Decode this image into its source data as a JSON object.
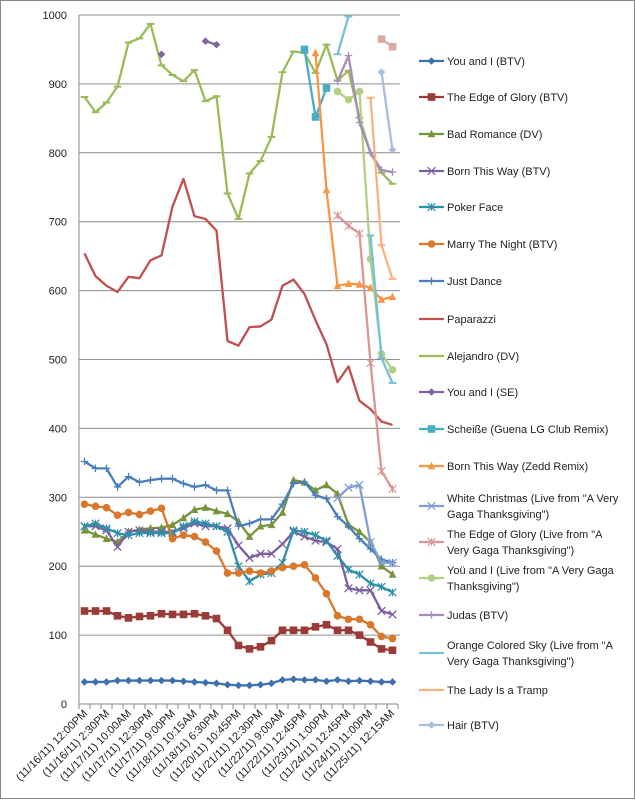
{
  "chart_data": {
    "type": "line",
    "title": "",
    "xlabel": "",
    "ylabel": "",
    "ylim": [
      0,
      1000
    ],
    "yticks": [
      0,
      100,
      200,
      300,
      400,
      500,
      600,
      700,
      800,
      900,
      1000
    ],
    "grid": true,
    "legend_position": "right",
    "category_count": 29,
    "x_tick_labels": [
      "(11/16/11) 12:00PM",
      "(11/16/11) 2:30PM",
      "(11/17/11) 10:00AM",
      "(11/17/11) 12:30PM",
      "(11/17/11) 9:00PM",
      "(11/18/11) 10:15AM",
      "(11/18/11) 6:30PM",
      "(11/20/11) 10:45PM",
      "(11/21/11) 12:30PM",
      "(11/22/11) 9:00AM",
      "(11/22/11) 12:45PM",
      "(11/23/11) 1:00PM",
      "(11/24/11) 12:45PM",
      "(11/24/11) 11:00PM",
      "(11/25/11) 12:15AM"
    ],
    "series": [
      {
        "name": "You and I (BTV)",
        "color": "#3F6FAE",
        "marker": "diamond",
        "values": [
          32,
          32,
          32,
          34,
          34,
          34,
          34,
          34,
          34,
          33,
          32,
          31,
          30,
          28,
          27,
          27,
          28,
          30,
          35,
          36,
          35,
          35,
          33,
          35,
          33,
          34,
          33,
          32,
          32
        ]
      },
      {
        "name": "The Edge of Glory (BTV)",
        "color": "#9A3B38",
        "marker": "square",
        "values": [
          135,
          135,
          135,
          128,
          125,
          127,
          128,
          131,
          130,
          130,
          131,
          128,
          124,
          107,
          85,
          80,
          83,
          92,
          107,
          107,
          107,
          112,
          115,
          107,
          107,
          100,
          90,
          80,
          78
        ]
      },
      {
        "name": "Bad Romance (DV)",
        "color": "#77933C",
        "marker": "triangle",
        "values": [
          252,
          246,
          240,
          235,
          250,
          253,
          255,
          256,
          260,
          270,
          282,
          285,
          280,
          276,
          265,
          243,
          258,
          260,
          278,
          325,
          322,
          310,
          318,
          305,
          260,
          250,
          235,
          200,
          188
        ]
      },
      {
        "name": "Born This Way (BTV)",
        "color": "#7D5FA0",
        "marker": "x",
        "values": [
          258,
          258,
          252,
          228,
          250,
          252,
          250,
          250,
          250,
          255,
          262,
          258,
          258,
          255,
          230,
          212,
          218,
          218,
          232,
          250,
          243,
          237,
          235,
          225,
          168,
          165,
          165,
          135,
          130
        ]
      },
      {
        "name": "Poker Face",
        "color": "#2E8FA8",
        "marker": "star",
        "values": [
          258,
          262,
          255,
          248,
          245,
          248,
          248,
          248,
          248,
          258,
          265,
          262,
          258,
          250,
          200,
          178,
          188,
          190,
          205,
          252,
          250,
          245,
          237,
          215,
          195,
          188,
          175,
          170,
          162
        ]
      },
      {
        "name": "Marry The Night (BTV)",
        "color": "#D9772B",
        "marker": "circle",
        "values": [
          290,
          287,
          285,
          274,
          278,
          275,
          280,
          284,
          240,
          245,
          243,
          235,
          222,
          190,
          190,
          193,
          190,
          193,
          198,
          200,
          202,
          183,
          160,
          128,
          123,
          123,
          115,
          98,
          95
        ]
      },
      {
        "name": "Just Dance",
        "color": "#4A7EBB",
        "marker": "plus",
        "values": [
          352,
          342,
          342,
          315,
          330,
          322,
          325,
          327,
          327,
          320,
          315,
          318,
          310,
          310,
          258,
          262,
          268,
          268,
          290,
          320,
          322,
          303,
          298,
          272,
          258,
          240,
          225,
          210,
          205
        ]
      },
      {
        "name": "Paparazzi",
        "color": "#C0504D",
        "marker": "none",
        "values": [
          654,
          621,
          607,
          598,
          620,
          618,
          644,
          651,
          722,
          762,
          708,
          704,
          687,
          527,
          520,
          547,
          548,
          558,
          607,
          616,
          595,
          557,
          522,
          467,
          490,
          440,
          428,
          410,
          405
        ]
      },
      {
        "name": "Alejandro (DV)",
        "color": "#9BBB59",
        "marker": "dash",
        "values": [
          881,
          859,
          873,
          896,
          960,
          966,
          987,
          927,
          913,
          904,
          920,
          875,
          882,
          741,
          704,
          770,
          788,
          823,
          917,
          947,
          945,
          916,
          957,
          905,
          919,
          851,
          800,
          771,
          755
        ]
      },
      {
        "name": "You and I (SE)",
        "color": "#8064A2",
        "marker": "diamond",
        "values": [
          null,
          null,
          null,
          null,
          null,
          null,
          null,
          943,
          null,
          null,
          null,
          962,
          957,
          null,
          null,
          null,
          null,
          null,
          null,
          null,
          null,
          null,
          null,
          null,
          null,
          null,
          null,
          null,
          null
        ]
      },
      {
        "name": "Scheiße (Guena LG Club Remix)",
        "color": "#4BACC6",
        "marker": "square",
        "values": [
          null,
          null,
          null,
          null,
          null,
          null,
          null,
          null,
          null,
          null,
          null,
          null,
          null,
          null,
          null,
          null,
          null,
          null,
          null,
          null,
          950,
          852,
          894,
          null,
          null,
          null,
          null,
          null,
          null
        ]
      },
      {
        "name": "Born This Way (Zedd Remix)",
        "color": "#F79646",
        "marker": "triangle",
        "values": [
          null,
          null,
          null,
          null,
          null,
          null,
          null,
          null,
          null,
          null,
          null,
          null,
          null,
          null,
          null,
          null,
          null,
          null,
          null,
          null,
          null,
          945,
          746,
          607,
          610,
          609,
          604,
          587,
          591
        ]
      },
      {
        "name": "White Christmas (Live from \"A Very Gaga Thanksgiving\")",
        "color": "#7F9FD4",
        "marker": "x",
        "values": [
          null,
          null,
          null,
          null,
          null,
          null,
          null,
          null,
          null,
          null,
          null,
          null,
          null,
          null,
          null,
          null,
          null,
          null,
          null,
          null,
          null,
          null,
          null,
          299,
          314,
          318,
          235,
          205,
          205
        ]
      },
      {
        "name": "The Edge of Glory (Live from \"A Very Gaga Thanksgiving\")",
        "color": "#D99694",
        "marker": "star",
        "values": [
          null,
          null,
          null,
          null,
          null,
          null,
          null,
          null,
          null,
          null,
          null,
          null,
          null,
          null,
          null,
          null,
          null,
          null,
          null,
          null,
          null,
          null,
          null,
          709,
          694,
          683,
          495,
          338,
          312
        ]
      },
      {
        "name": "Yoü and I (Live from \"A Very Gaga Thanksgiving\")",
        "color": "#B3CF81",
        "marker": "circle",
        "values": [
          null,
          null,
          null,
          null,
          null,
          null,
          null,
          null,
          null,
          null,
          null,
          null,
          null,
          null,
          null,
          null,
          null,
          null,
          null,
          null,
          null,
          null,
          null,
          889,
          877,
          889,
          646,
          508,
          485
        ]
      },
      {
        "name": "Judas (BTV)",
        "color": "#A28DBB",
        "marker": "plus",
        "values": [
          null,
          null,
          null,
          null,
          null,
          null,
          null,
          null,
          null,
          null,
          null,
          null,
          null,
          null,
          null,
          null,
          null,
          null,
          null,
          null,
          null,
          null,
          null,
          904,
          941,
          844,
          800,
          775,
          772
        ]
      },
      {
        "name": "Orange Colored Sky (Live from \"A Very Gaga Thanksgiving\")",
        "color": "#78C0D8",
        "marker": "dash",
        "values": [
          null,
          null,
          null,
          null,
          null,
          null,
          null,
          null,
          null,
          null,
          null,
          null,
          null,
          null,
          null,
          null,
          null,
          null,
          null,
          null,
          null,
          null,
          null,
          943,
          998,
          null,
          680,
          502,
          466
        ]
      },
      {
        "name": "The Lady Is a Tramp",
        "color": "#FAB080",
        "marker": "dash",
        "values": [
          null,
          null,
          null,
          null,
          null,
          null,
          null,
          null,
          null,
          null,
          null,
          null,
          null,
          null,
          null,
          null,
          null,
          null,
          null,
          null,
          null,
          null,
          null,
          null,
          null,
          null,
          880,
          666,
          617
        ]
      },
      {
        "name": "Hair (BTV)",
        "color": "#A9BDE0",
        "marker": "diamond",
        "values": [
          null,
          null,
          null,
          null,
          null,
          null,
          null,
          null,
          null,
          null,
          null,
          null,
          null,
          null,
          null,
          null,
          null,
          null,
          null,
          null,
          null,
          null,
          null,
          null,
          null,
          null,
          null,
          917,
          804
        ]
      },
      {
        "name": "",
        "color": "#DDA9A8",
        "marker": "square",
        "values": [
          null,
          null,
          null,
          null,
          null,
          null,
          null,
          null,
          null,
          null,
          null,
          null,
          null,
          null,
          null,
          null,
          null,
          null,
          null,
          null,
          null,
          null,
          null,
          null,
          null,
          null,
          null,
          965,
          954
        ]
      }
    ]
  }
}
